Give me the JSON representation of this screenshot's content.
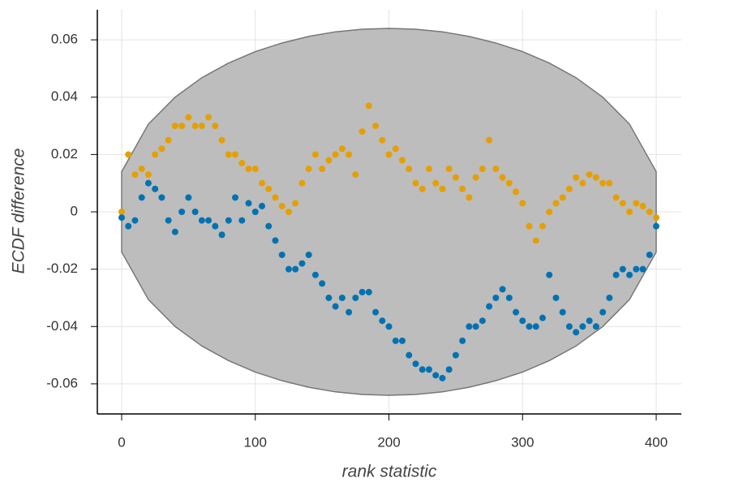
{
  "chart_data": {
    "type": "scatter",
    "xlabel": "rank statistic",
    "ylabel": "ECDF difference",
    "xlim": [
      -18.2,
      418.8
    ],
    "ylim": [
      -0.0705,
      0.0705
    ],
    "xticks": [
      0,
      100,
      200,
      300,
      400
    ],
    "yticks": [
      -0.06,
      -0.04,
      -0.02,
      0,
      0.02,
      0.04,
      0.06
    ],
    "grid": true,
    "band": {
      "color": "#bdbdbd",
      "x": [
        0,
        20,
        40,
        60,
        80,
        100,
        120,
        140,
        160,
        180,
        200,
        220,
        240,
        260,
        280,
        300,
        320,
        340,
        360,
        380,
        400
      ],
      "upper": [
        0.014,
        0.0306,
        0.04,
        0.0468,
        0.0519,
        0.0559,
        0.0589,
        0.0612,
        0.0628,
        0.0637,
        0.064,
        0.0637,
        0.0628,
        0.0612,
        0.0589,
        0.0559,
        0.0519,
        0.0468,
        0.04,
        0.0306,
        0.014
      ],
      "lower": [
        -0.014,
        -0.0306,
        -0.04,
        -0.0468,
        -0.0519,
        -0.0559,
        -0.0589,
        -0.0612,
        -0.0628,
        -0.0637,
        -0.064,
        -0.0637,
        -0.0628,
        -0.0612,
        -0.0589,
        -0.0559,
        -0.0519,
        -0.0468,
        -0.04,
        -0.0306,
        -0.014
      ]
    },
    "x": [
      0,
      5,
      10,
      15,
      20,
      25,
      30,
      35,
      40,
      45,
      50,
      55,
      60,
      65,
      70,
      75,
      80,
      85,
      90,
      95,
      100,
      105,
      110,
      115,
      120,
      125,
      130,
      135,
      140,
      145,
      150,
      155,
      160,
      165,
      170,
      175,
      180,
      185,
      190,
      195,
      200,
      205,
      210,
      215,
      220,
      225,
      230,
      235,
      240,
      245,
      250,
      255,
      260,
      265,
      270,
      275,
      280,
      285,
      290,
      295,
      300,
      305,
      310,
      315,
      320,
      325,
      330,
      335,
      340,
      345,
      350,
      355,
      360,
      365,
      370,
      375,
      380,
      385,
      390,
      395,
      400
    ],
    "series": [
      {
        "color": "#e69f00",
        "values": [
          0,
          0.02,
          0.013,
          0.015,
          0.013,
          0.02,
          0.022,
          0.025,
          0.03,
          0.03,
          0.033,
          0.03,
          0.03,
          0.033,
          0.03,
          0.025,
          0.02,
          0.02,
          0.017,
          0.015,
          0.015,
          0.01,
          0.008,
          0.005,
          0.002,
          0,
          0.003,
          0.01,
          0.015,
          0.02,
          0.015,
          0.018,
          0.02,
          0.022,
          0.02,
          0.013,
          0.028,
          0.037,
          0.03,
          0.025,
          0.02,
          0.022,
          0.018,
          0.015,
          0.01,
          0.008,
          0.015,
          0.01,
          0.008,
          0.015,
          0.012,
          0.008,
          0.005,
          0.012,
          0.015,
          0.025,
          0.015,
          0.012,
          0.01,
          0.007,
          0.003,
          -0.005,
          -0.01,
          -0.005,
          0,
          0.003,
          0.005,
          0.008,
          0.012,
          0.01,
          0.013,
          0.012,
          0.01,
          0.01,
          0.005,
          0.003,
          0,
          0.003,
          0.002,
          0,
          -0.002
        ]
      },
      {
        "color": "#0072b2",
        "values": [
          -0.002,
          -0.005,
          -0.003,
          0.005,
          0.01,
          0.008,
          0.005,
          -0.003,
          -0.007,
          0,
          0.005,
          0,
          -0.003,
          -0.003,
          -0.005,
          -0.008,
          -0.003,
          0.005,
          -0.003,
          0.003,
          0,
          0.002,
          -0.005,
          -0.01,
          -0.015,
          -0.02,
          -0.02,
          -0.018,
          -0.015,
          -0.022,
          -0.025,
          -0.03,
          -0.033,
          -0.03,
          -0.035,
          -0.03,
          -0.028,
          -0.028,
          -0.035,
          -0.038,
          -0.04,
          -0.045,
          -0.045,
          -0.05,
          -0.053,
          -0.055,
          -0.055,
          -0.057,
          -0.058,
          -0.055,
          -0.05,
          -0.045,
          -0.04,
          -0.04,
          -0.038,
          -0.033,
          -0.03,
          -0.027,
          -0.03,
          -0.035,
          -0.038,
          -0.04,
          -0.04,
          -0.037,
          -0.022,
          -0.03,
          -0.035,
          -0.04,
          -0.042,
          -0.04,
          -0.038,
          -0.04,
          -0.035,
          -0.03,
          -0.022,
          -0.02,
          -0.022,
          -0.02,
          -0.02,
          -0.015,
          -0.005
        ]
      }
    ]
  }
}
